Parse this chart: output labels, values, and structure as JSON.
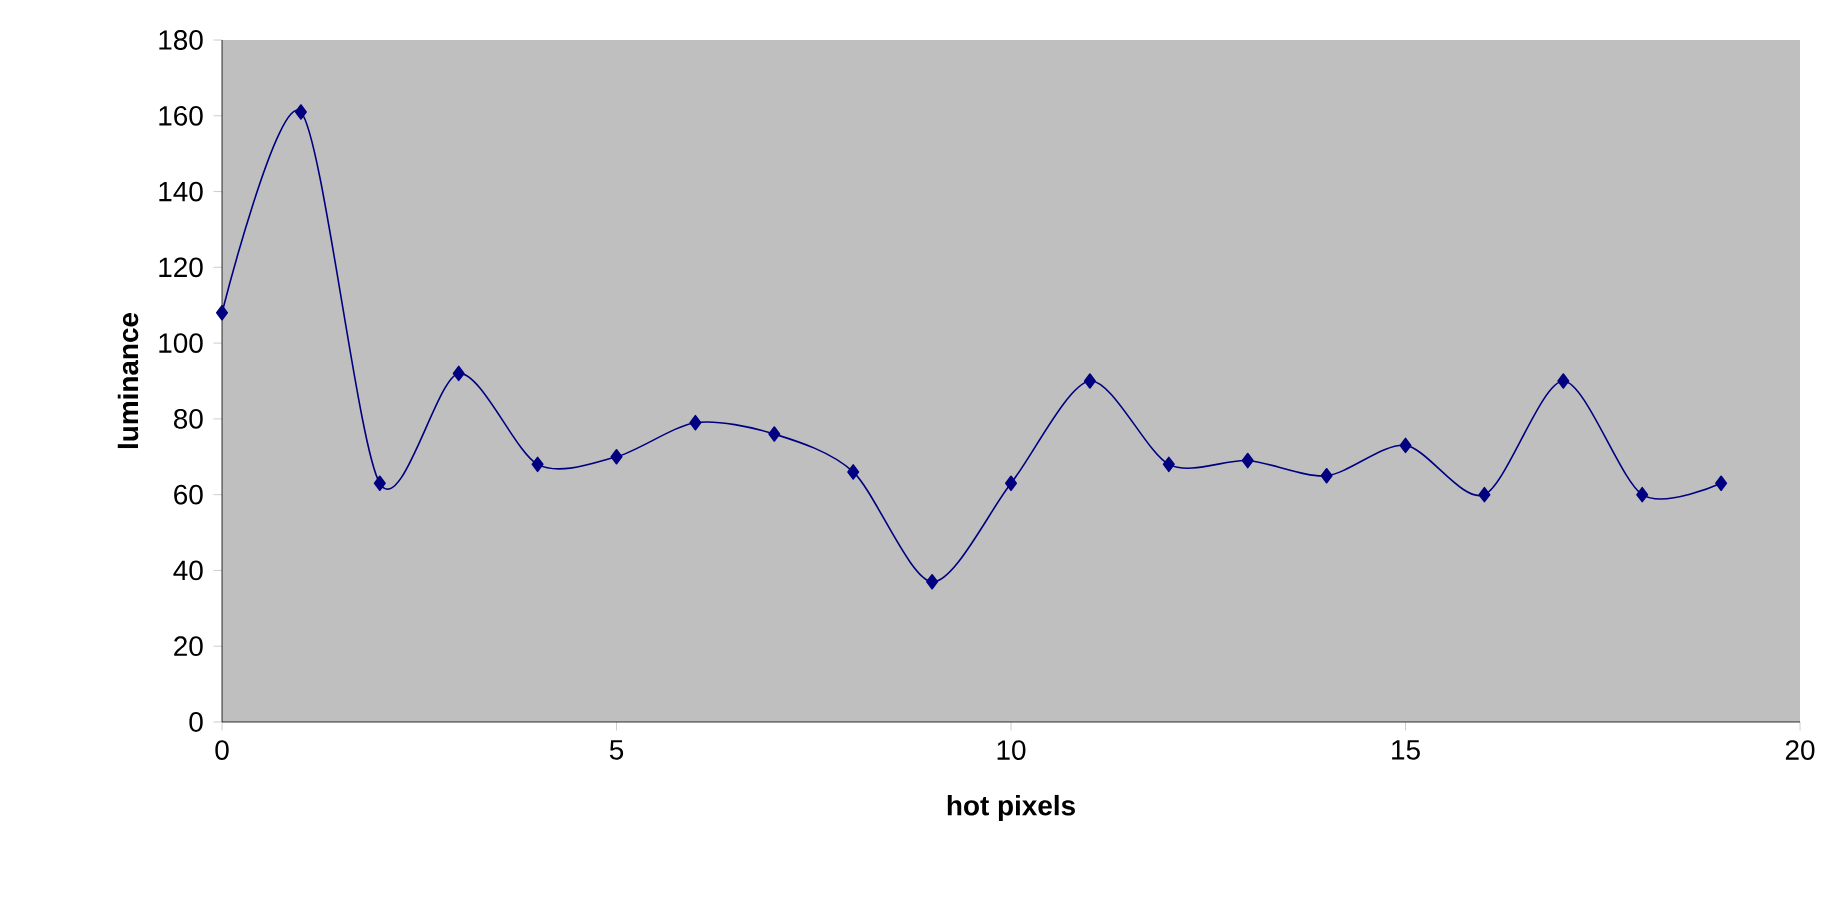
{
  "chart_data": {
    "type": "line",
    "xlabel": "hot pixels",
    "ylabel": "luminance",
    "x": [
      0,
      1,
      2,
      3,
      4,
      5,
      6,
      7,
      8,
      9,
      10,
      11,
      12,
      13,
      14,
      15,
      16,
      17,
      18,
      19
    ],
    "values": [
      108,
      161,
      63,
      92,
      68,
      70,
      79,
      76,
      66,
      37,
      63,
      90,
      68,
      69,
      65,
      73,
      60,
      90,
      60,
      63
    ],
    "color": "#000080",
    "marker": "diamond",
    "line_style": "solid",
    "xlim": [
      0,
      20
    ],
    "xticks": [
      0,
      5,
      10,
      15,
      20
    ],
    "ylim": [
      0,
      180
    ],
    "yticks": [
      0,
      20,
      40,
      60,
      80,
      100,
      120,
      140,
      160,
      180
    ]
  }
}
